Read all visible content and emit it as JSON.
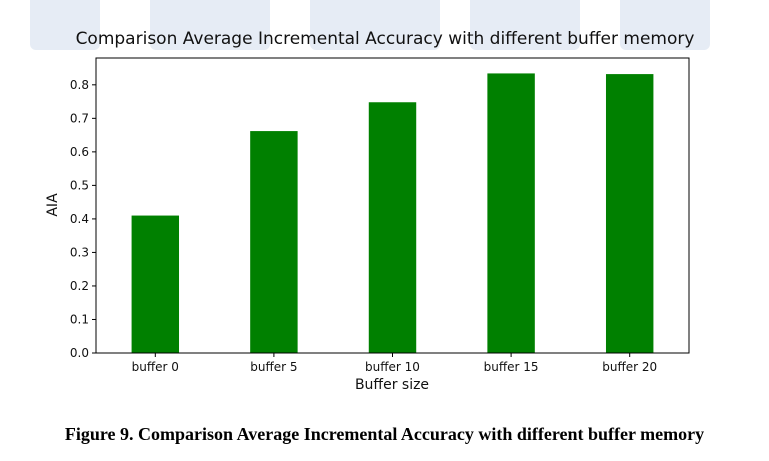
{
  "chart_data": {
    "type": "bar",
    "title": "Comparison Average Incremental Accuracy with different buffer memory",
    "xlabel": "Buffer size",
    "ylabel": "AIA",
    "categories": [
      "buffer 0",
      "buffer 5",
      "buffer 10",
      "buffer 15",
      "buffer 20"
    ],
    "values": [
      0.41,
      0.662,
      0.748,
      0.834,
      0.832
    ],
    "ylim": [
      0,
      0.88
    ],
    "yticks": [
      "0.0",
      "0.1",
      "0.2",
      "0.3",
      "0.4",
      "0.5",
      "0.6",
      "0.7",
      "0.8"
    ],
    "bar_color": "#008000",
    "grid": false,
    "legend": "none"
  },
  "caption": "Figure 9. Comparison Average Incremental Accuracy with different buffer memory"
}
